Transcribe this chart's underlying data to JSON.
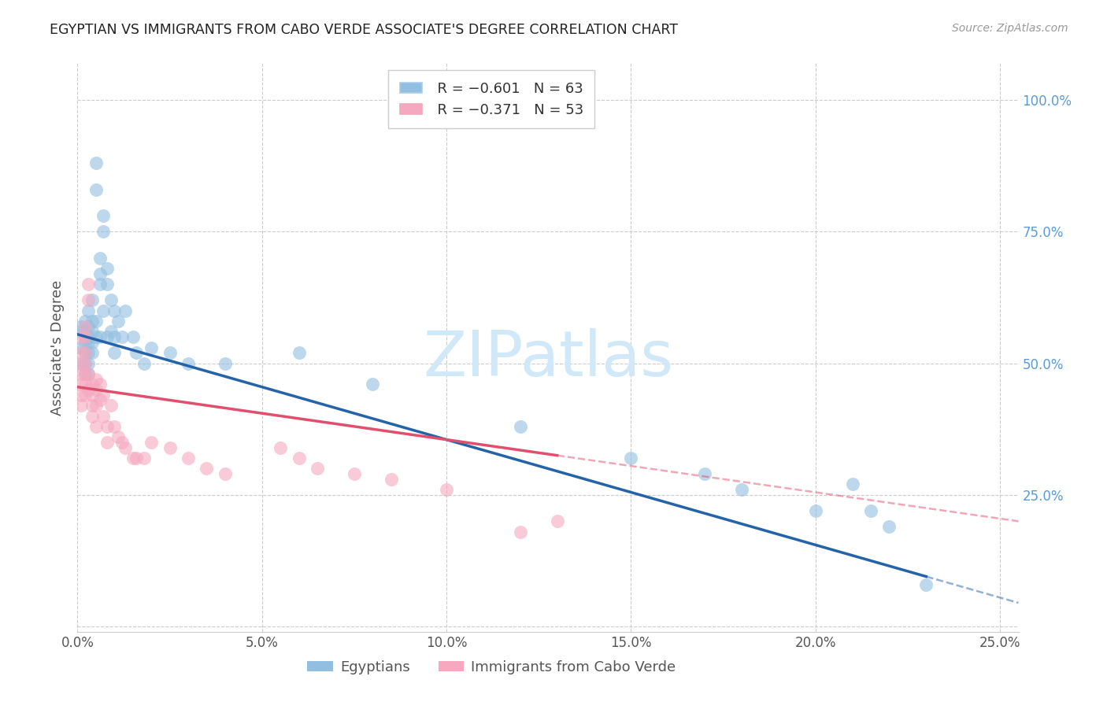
{
  "title": "EGYPTIAN VS IMMIGRANTS FROM CABO VERDE ASSOCIATE'S DEGREE CORRELATION CHART",
  "source": "Source: ZipAtlas.com",
  "ylabel": "Associate's Degree",
  "right_ytick_vals": [
    1.0,
    0.75,
    0.5,
    0.25
  ],
  "right_ytick_labels": [
    "100.0%",
    "75.0%",
    "50.0%",
    "25.0%"
  ],
  "xlim": [
    0.0,
    0.255
  ],
  "ylim": [
    -0.01,
    1.07
  ],
  "legend_blue_r": "R = −0.601",
  "legend_blue_n": "N = 63",
  "legend_pink_r": "R = −0.371",
  "legend_pink_n": "N = 53",
  "blue_scatter_color": "#92bfe0",
  "pink_scatter_color": "#f5a8bf",
  "blue_line_color": "#2563a8",
  "pink_line_color": "#e0506e",
  "watermark_color": "#d0e8f8",
  "grid_color": "#cccccc",
  "title_color": "#222222",
  "source_color": "#999999",
  "right_axis_color": "#5b9bd5",
  "blue_x": [
    0.001,
    0.001,
    0.001,
    0.001,
    0.002,
    0.002,
    0.002,
    0.002,
    0.002,
    0.002,
    0.002,
    0.003,
    0.003,
    0.003,
    0.003,
    0.003,
    0.003,
    0.003,
    0.004,
    0.004,
    0.004,
    0.004,
    0.004,
    0.005,
    0.005,
    0.005,
    0.005,
    0.006,
    0.006,
    0.006,
    0.006,
    0.007,
    0.007,
    0.007,
    0.008,
    0.008,
    0.008,
    0.009,
    0.009,
    0.01,
    0.01,
    0.01,
    0.011,
    0.012,
    0.013,
    0.015,
    0.016,
    0.018,
    0.02,
    0.025,
    0.03,
    0.04,
    0.06,
    0.08,
    0.12,
    0.15,
    0.17,
    0.18,
    0.2,
    0.21,
    0.215,
    0.22,
    0.23
  ],
  "blue_y": [
    0.56,
    0.53,
    0.5,
    0.57,
    0.58,
    0.55,
    0.52,
    0.54,
    0.5,
    0.56,
    0.48,
    0.6,
    0.57,
    0.54,
    0.52,
    0.5,
    0.48,
    0.55,
    0.62,
    0.58,
    0.56,
    0.54,
    0.52,
    0.88,
    0.83,
    0.58,
    0.55,
    0.7,
    0.67,
    0.65,
    0.55,
    0.78,
    0.75,
    0.6,
    0.68,
    0.65,
    0.55,
    0.62,
    0.56,
    0.6,
    0.55,
    0.52,
    0.58,
    0.55,
    0.6,
    0.55,
    0.52,
    0.5,
    0.53,
    0.52,
    0.5,
    0.5,
    0.52,
    0.46,
    0.38,
    0.32,
    0.29,
    0.26,
    0.22,
    0.27,
    0.22,
    0.19,
    0.08
  ],
  "pink_x": [
    0.001,
    0.001,
    0.001,
    0.001,
    0.001,
    0.001,
    0.001,
    0.002,
    0.002,
    0.002,
    0.002,
    0.002,
    0.002,
    0.002,
    0.003,
    0.003,
    0.003,
    0.003,
    0.004,
    0.004,
    0.004,
    0.004,
    0.005,
    0.005,
    0.005,
    0.005,
    0.006,
    0.006,
    0.007,
    0.007,
    0.008,
    0.008,
    0.009,
    0.01,
    0.011,
    0.012,
    0.013,
    0.015,
    0.016,
    0.018,
    0.02,
    0.025,
    0.03,
    0.035,
    0.04,
    0.055,
    0.06,
    0.065,
    0.075,
    0.085,
    0.1,
    0.12,
    0.13
  ],
  "pink_y": [
    0.55,
    0.52,
    0.5,
    0.48,
    0.46,
    0.44,
    0.42,
    0.57,
    0.55,
    0.52,
    0.5,
    0.48,
    0.46,
    0.44,
    0.65,
    0.62,
    0.48,
    0.45,
    0.46,
    0.44,
    0.42,
    0.4,
    0.47,
    0.45,
    0.42,
    0.38,
    0.46,
    0.43,
    0.44,
    0.4,
    0.38,
    0.35,
    0.42,
    0.38,
    0.36,
    0.35,
    0.34,
    0.32,
    0.32,
    0.32,
    0.35,
    0.34,
    0.32,
    0.3,
    0.29,
    0.34,
    0.32,
    0.3,
    0.29,
    0.28,
    0.26,
    0.18,
    0.2
  ]
}
